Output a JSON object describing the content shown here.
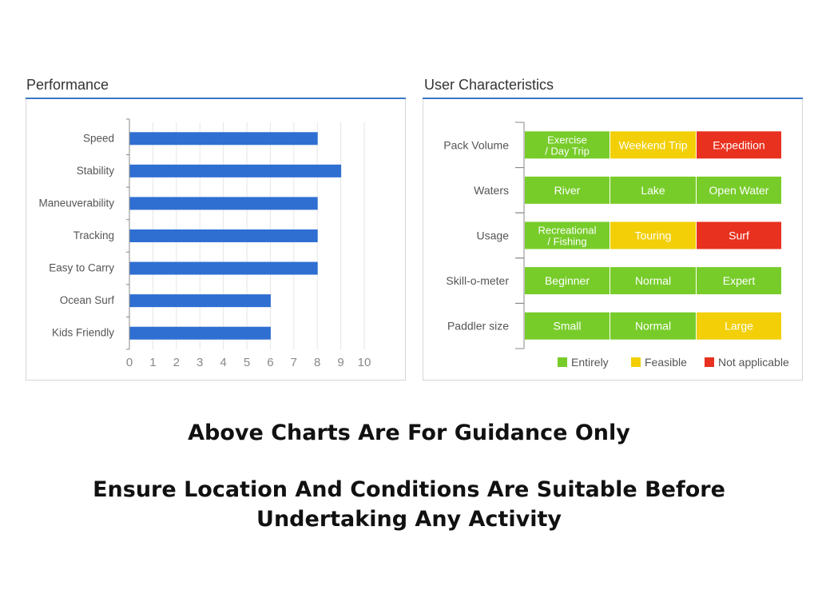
{
  "colors": {
    "accent": "#3c78c8",
    "bar": "#2f6fd2",
    "entirely": "#77cc2a",
    "feasible": "#f2cf07",
    "not_applicable": "#e8311f"
  },
  "performance": {
    "title": "Performance",
    "chart_data": {
      "type": "bar",
      "orientation": "horizontal",
      "categories": [
        "Speed",
        "Stability",
        "Maneuverability",
        "Tracking",
        "Easy to Carry",
        "Ocean Surf",
        "Kids Friendly"
      ],
      "values": [
        8,
        9,
        8,
        8,
        8,
        6,
        6
      ],
      "xlim": [
        0,
        10
      ],
      "xticks": [
        "0",
        "1",
        "2",
        "3",
        "4",
        "5",
        "6",
        "7",
        "8",
        "9",
        "10"
      ],
      "grid": true
    }
  },
  "user_characteristics": {
    "title": "User Characteristics",
    "chart_data": {
      "type": "table",
      "rows": [
        {
          "label": "Pack Volume",
          "cells": [
            {
              "text": "Exercise\n/ Day Trip",
              "status": "entirely"
            },
            {
              "text": "Weekend Trip",
              "status": "feasible"
            },
            {
              "text": "Expedition",
              "status": "not_applicable"
            }
          ]
        },
        {
          "label": "Waters",
          "cells": [
            {
              "text": "River",
              "status": "entirely"
            },
            {
              "text": "Lake",
              "status": "entirely"
            },
            {
              "text": "Open Water",
              "status": "entirely"
            }
          ]
        },
        {
          "label": "Usage",
          "cells": [
            {
              "text": "Recreational\n/ Fishing",
              "status": "entirely"
            },
            {
              "text": "Touring",
              "status": "feasible"
            },
            {
              "text": "Surf",
              "status": "not_applicable"
            }
          ]
        },
        {
          "label": "Skill-o-meter",
          "cells": [
            {
              "text": "Beginner",
              "status": "entirely"
            },
            {
              "text": "Normal",
              "status": "entirely"
            },
            {
              "text": "Expert",
              "status": "entirely"
            }
          ]
        },
        {
          "label": "Paddler size",
          "cells": [
            {
              "text": "Small",
              "status": "entirely"
            },
            {
              "text": "Normal",
              "status": "entirely"
            },
            {
              "text": "Large",
              "status": "feasible"
            }
          ]
        }
      ],
      "legend": [
        {
          "label": "Entirely",
          "status": "entirely"
        },
        {
          "label": "Feasible",
          "status": "feasible"
        },
        {
          "label": "Not applicable",
          "status": "not_applicable"
        }
      ],
      "legend_position": "bottom-right"
    }
  },
  "notes": {
    "line1": "Above Charts Are For Guidance Only",
    "line2": "Ensure Location And Conditions Are Suitable Before",
    "line3": "Undertaking Any Activity"
  }
}
